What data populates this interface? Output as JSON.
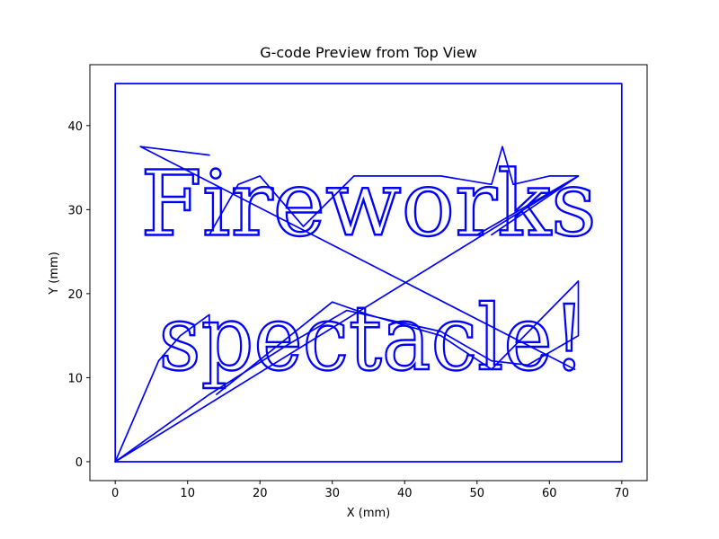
{
  "chart_data": {
    "type": "line",
    "title": "G-code Preview from Top View",
    "xlabel": "X (mm)",
    "ylabel": "Y (mm)",
    "xlim": [
      -3.5,
      73.5
    ],
    "ylim": [
      -2.25,
      47.25
    ],
    "xticks": [
      0,
      10,
      20,
      30,
      40,
      50,
      60,
      70
    ],
    "yticks": [
      0,
      10,
      20,
      30,
      40
    ],
    "grid": false,
    "line_color": "#0000ff",
    "text_lines": [
      {
        "text": "Fireworks",
        "baseline_y": 27,
        "x_start": 3.5,
        "x_end": 66.5
      },
      {
        "text": "spectacle!",
        "baseline_y": 11,
        "x_start": 6,
        "x_end": 65
      }
    ],
    "series": [
      {
        "points": [
          [
            0,
            0
          ],
          [
            0,
            45
          ],
          [
            70,
            45
          ],
          [
            70,
            0
          ],
          [
            0,
            0
          ]
        ]
      },
      {
        "points": [
          [
            0,
            0
          ],
          [
            6,
            12
          ],
          [
            9,
            15
          ],
          [
            13,
            17.5
          ],
          [
            13,
            16
          ]
        ]
      },
      {
        "points": [
          [
            3.5,
            37.5
          ],
          [
            63.5,
            11
          ]
        ]
      },
      {
        "points": [
          [
            13,
            36.5
          ],
          [
            3.5,
            37.5
          ]
        ]
      },
      {
        "points": [
          [
            13,
            27
          ],
          [
            17,
            33
          ],
          [
            20,
            34
          ],
          [
            26,
            28
          ],
          [
            33,
            34
          ],
          [
            45,
            34
          ],
          [
            52,
            33
          ],
          [
            53.5,
            37.5
          ],
          [
            55,
            33
          ],
          [
            60,
            34
          ],
          [
            64,
            34
          ],
          [
            52,
            27
          ]
        ]
      },
      {
        "points": [
          [
            0,
            0
          ],
          [
            13,
            8
          ],
          [
            24,
            14
          ],
          [
            32,
            18
          ],
          [
            45,
            15.5
          ],
          [
            52,
            12
          ],
          [
            57,
            11.5
          ],
          [
            64,
            15
          ],
          [
            64,
            21.5
          ],
          [
            52,
            11
          ],
          [
            45,
            15
          ],
          [
            35,
            17.5
          ],
          [
            30,
            19
          ],
          [
            14,
            8
          ]
        ]
      },
      {
        "points": [
          [
            0,
            0
          ],
          [
            64,
            34
          ],
          [
            50,
            27
          ]
        ]
      }
    ]
  }
}
